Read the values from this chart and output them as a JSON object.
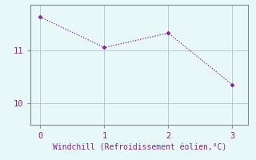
{
  "x": [
    0,
    1,
    2,
    3
  ],
  "y": [
    11.62,
    11.05,
    11.32,
    10.35
  ],
  "line_color": "#882288",
  "marker_color": "#882288",
  "bg_color": "#e8f8f8",
  "xlabel": "Windchill (Refroidissement éolien,°C)",
  "xlabel_color": "#882288",
  "axis_color": "#888888",
  "grid_color": "#bbcccc",
  "tick_color": "#882288",
  "yticks": [
    10,
    11
  ],
  "xticks": [
    0,
    1,
    2,
    3
  ],
  "xlim": [
    -0.15,
    3.25
  ],
  "ylim": [
    9.6,
    11.85
  ]
}
